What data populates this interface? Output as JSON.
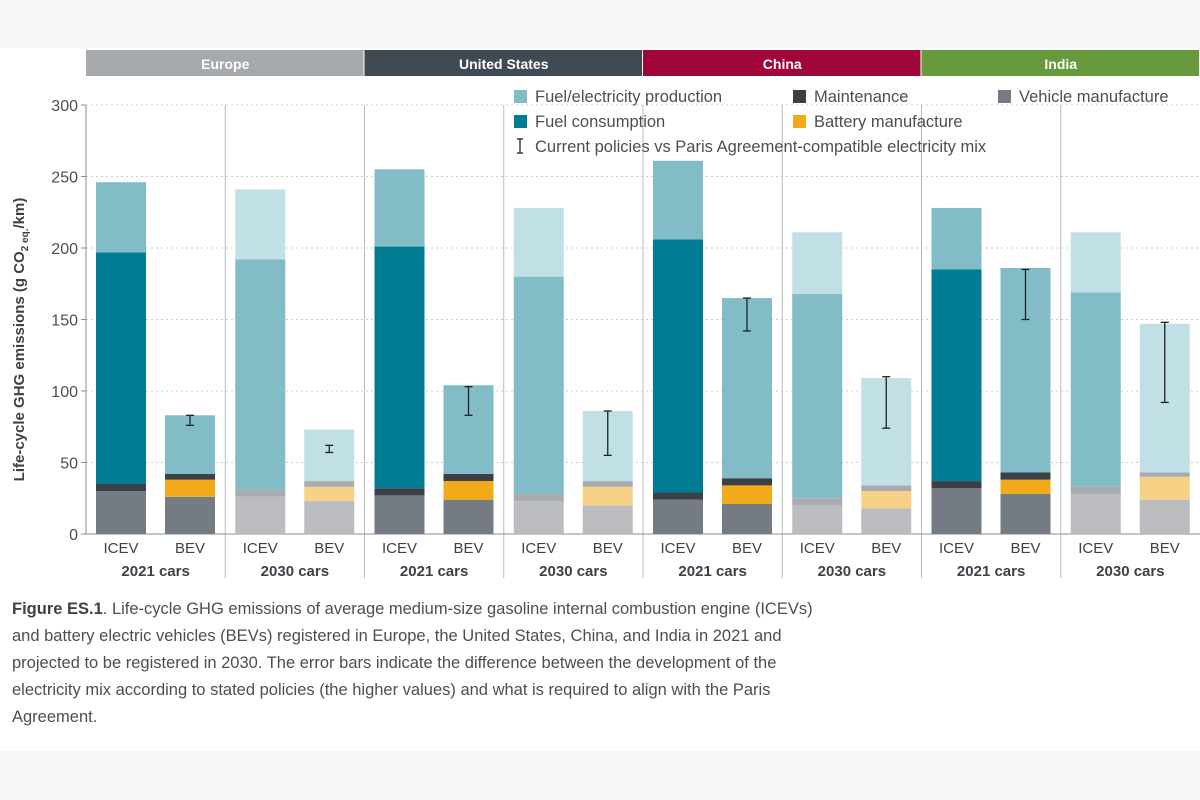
{
  "chart_data": {
    "type": "bar",
    "stacked": true,
    "ylabel": "Life-cycle GHG emissions (g CO₂ eq./km)",
    "ylabel_main": "Life-cycle GHG emissions (g CO",
    "ylabel_sub": "2 eq.",
    "ylabel_end": "/km)",
    "ylim": [
      0,
      300
    ],
    "yticks": [
      0,
      50,
      100,
      150,
      200,
      250,
      300
    ],
    "grid": true,
    "legend_position": "top",
    "regions": [
      {
        "name": "Europe",
        "color": "#a6a9ad"
      },
      {
        "name": "United States",
        "color": "#404a53"
      },
      {
        "name": "China",
        "color": "#a0063a"
      },
      {
        "name": "India",
        "color": "#679a3c"
      }
    ],
    "groups": [
      "2021 cars",
      "2030 cars",
      "2021 cars",
      "2030 cars",
      "2021 cars",
      "2030 cars",
      "2021 cars",
      "2030 cars"
    ],
    "categories": [
      "ICEV",
      "BEV",
      "ICEV",
      "BEV",
      "ICEV",
      "BEV",
      "ICEV",
      "BEV",
      "ICEV",
      "BEV",
      "ICEV",
      "BEV",
      "ICEV",
      "BEV",
      "ICEV",
      "BEV"
    ],
    "series": [
      {
        "name": "Vehicle manufacture",
        "color": "#757b82",
        "light_color": "#babcbf",
        "values": [
          30,
          26,
          26,
          23,
          27,
          24,
          23,
          20,
          24,
          21,
          20,
          18,
          32,
          28,
          28,
          24
        ]
      },
      {
        "name": "Battery manufacture",
        "color": "#f2aa1b",
        "light_color": "#f7d286",
        "values": [
          0,
          12,
          0,
          10,
          0,
          13,
          0,
          13,
          0,
          13,
          0,
          12,
          0,
          10,
          0,
          16
        ]
      },
      {
        "name": "Maintenance",
        "color": "#3b4046",
        "light_color": "#a8acb0",
        "values": [
          5,
          4,
          5,
          4,
          5,
          5,
          5,
          4,
          5,
          5,
          5,
          4,
          5,
          5,
          5,
          3
        ]
      },
      {
        "name": "Fuel consumption",
        "color": "#017c92",
        "light_color": "#017c92",
        "values": [
          162,
          0,
          0,
          0,
          169,
          0,
          0,
          0,
          177,
          0,
          0,
          0,
          148,
          0,
          0,
          0
        ]
      },
      {
        "name": "Fuel/electricity production",
        "color": "#82bcc7",
        "light_color": "#c1e0e5",
        "values": [
          49,
          41,
          210,
          36,
          54,
          62,
          200,
          49,
          55,
          126,
          186,
          75,
          43,
          143,
          178,
          104
        ]
      }
    ],
    "series_split_light": {
      "Fuel/electricity production": [
        0,
        0,
        49,
        0,
        0,
        0,
        48,
        0,
        0,
        0,
        43,
        0,
        0,
        0,
        42,
        0
      ]
    },
    "error_bars": {
      "name": "Current policies vs Paris Agreement-compatible electricity mix",
      "low": [
        null,
        76,
        null,
        57,
        null,
        83,
        null,
        55,
        null,
        142,
        null,
        74,
        null,
        150,
        null,
        92
      ],
      "high": [
        null,
        83,
        null,
        62,
        null,
        103,
        null,
        86,
        null,
        165,
        null,
        110,
        null,
        185,
        null,
        148
      ]
    },
    "legend": [
      "Fuel/electricity production",
      "Maintenance",
      "Vehicle manufacture",
      "Fuel consumption",
      "Battery manufacture",
      "Current policies vs Paris Agreement-compatible electricity mix"
    ]
  },
  "caption": {
    "label": "Figure ES.1",
    "text": ". Life-cycle GHG emissions of average medium-size gasoline internal combustion engine (ICEVs) and battery electric vehicles (BEVs) registered in Europe, the United States, China, and India in 2021 and projected to be registered in 2030. The error bars indicate the difference between the development of the electricity mix according to stated policies (the higher values) and what is required to align with the Paris Agreement."
  }
}
